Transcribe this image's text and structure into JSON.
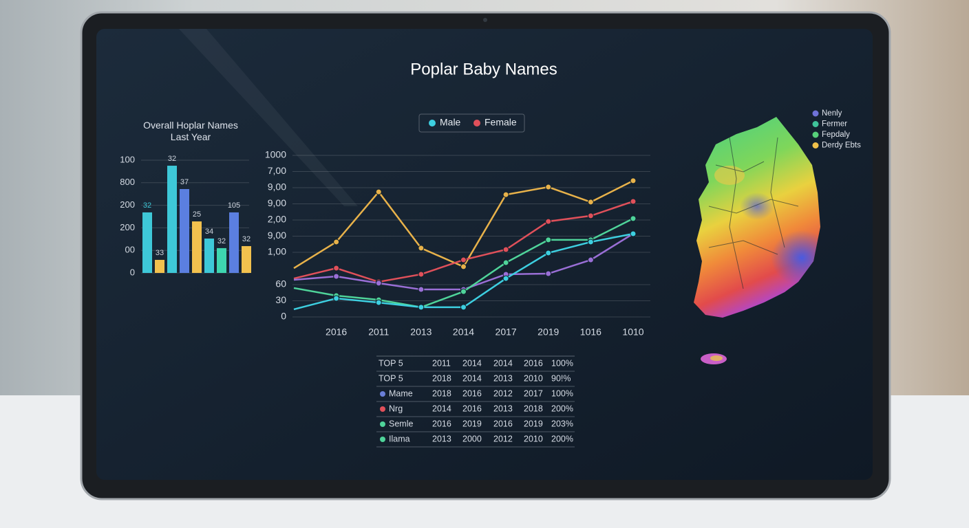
{
  "title": "Poplar Baby Names",
  "chart_data": [
    {
      "type": "bar",
      "title": "Overall Hoplar Names Last Year",
      "categories": [
        null,
        null,
        null,
        null,
        null,
        null,
        null,
        null,
        null
      ],
      "values": [
        537,
        116,
        951,
        744,
        457,
        305,
        220,
        537,
        238
      ],
      "colors": [
        "#3ec8d8",
        "#f2c14e",
        "#3ec8d8",
        "#5b7fe0",
        "#f2c14e",
        "#3ec8d8",
        "#3ed6b0",
        "#5b7fe0",
        "#f2c14e"
      ],
      "annotations": [
        "32",
        "33",
        "32",
        "37",
        "25",
        "34",
        "32",
        "105",
        "32"
      ],
      "ylim": [
        0,
        1000
      ],
      "yticks": [
        0,
        {
          "value": 200,
          "label": "00"
        },
        {
          "value": 400,
          "label": "200"
        },
        {
          "value": 600,
          "label": "200"
        },
        800,
        {
          "value": 1000,
          "label": "100"
        }
      ],
      "grid": true
    },
    {
      "type": "line",
      "legend": "top",
      "categories": [
        null,
        "2016",
        "2011",
        "2013",
        "2014",
        "2017",
        "2019",
        "1016",
        "1010"
      ],
      "series": [
        {
          "color": "#e8b24a",
          "values": [
            302,
            464,
            774,
            426,
            311,
            757,
            804,
            711,
            843
          ]
        },
        {
          "name": "Female",
          "color": "#e0505a",
          "values": [
            238,
            302,
            217,
            264,
            353,
            417,
            591,
            626,
            715
          ]
        },
        {
          "color": "#9a6fd6",
          "values": [
            230,
            251,
            209,
            170,
            170,
            264,
            268,
            353,
            515
          ]
        },
        {
          "color": "#4fd49a",
          "values": [
            179,
            132,
            106,
            60,
            157,
            336,
            477,
            477,
            609
          ]
        },
        {
          "name": "Male",
          "color": "#3dcfe0",
          "values": [
            47,
            115,
            89,
            60,
            60,
            238,
            396,
            464,
            515
          ]
        }
      ],
      "ylim": [
        0,
        1000
      ],
      "yticks": [
        0,
        {
          "value": 100,
          "label": "30"
        },
        {
          "value": 200,
          "label": "60"
        },
        {
          "value": 400,
          "label": "1,00"
        },
        {
          "value": 500,
          "label": "9,00"
        },
        {
          "value": 600,
          "label": "2,00"
        },
        {
          "value": 700,
          "label": "9,00"
        },
        {
          "value": 800,
          "label": "9,00"
        },
        {
          "value": 900,
          "label": "7,00"
        },
        1000
      ],
      "grid": true
    }
  ],
  "table": {
    "rows": [
      {
        "cells": [
          "TOP 5",
          "2011",
          "2014",
          "2014",
          "2016",
          "100%"
        ]
      },
      {
        "cells": [
          "TOP 5",
          "2018",
          "2014",
          "2013",
          "2010",
          "90!%"
        ]
      },
      {
        "cells": [
          "Mame",
          "2018",
          "2016",
          "2012",
          "2017",
          "100%"
        ],
        "dot": "#6a7fd8"
      },
      {
        "cells": [
          "Nrg",
          "2014",
          "2016",
          "2013",
          "2018",
          "200%"
        ],
        "dot": "#e0505a"
      },
      {
        "cells": [
          "Semle",
          "2016",
          "2019",
          "2016",
          "2019",
          "203%"
        ],
        "dot": "#4fd49a"
      },
      {
        "cells": [
          "Ilama",
          "2013",
          "2000",
          "2012",
          "2010",
          "200%"
        ],
        "dot": "#4fd49a"
      }
    ]
  },
  "map_legend": [
    {
      "label": "Nenly",
      "color": "#6f72d8"
    },
    {
      "label": "Fermer",
      "color": "#3fc39a"
    },
    {
      "label": "Fepdaly",
      "color": "#57d07a"
    },
    {
      "label": "Derdy Ebts",
      "color": "#f0c04a"
    }
  ]
}
